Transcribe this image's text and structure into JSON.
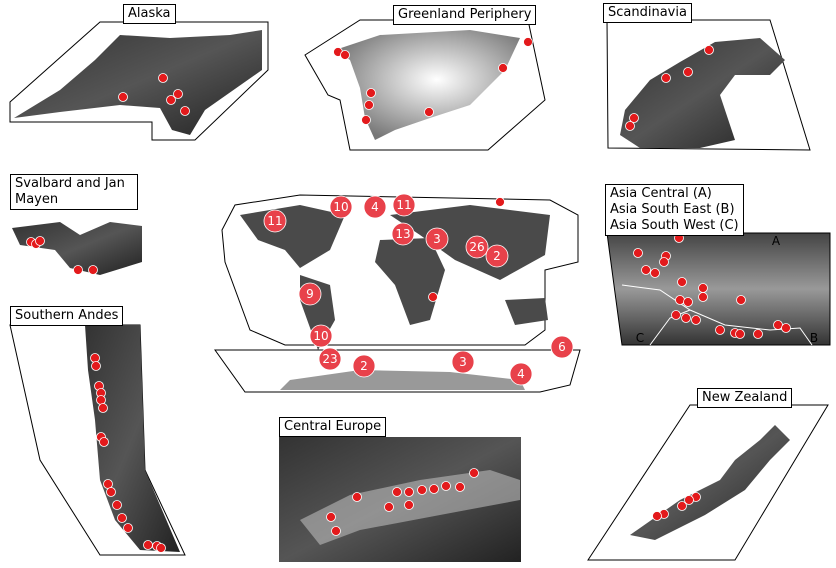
{
  "panels": [
    {
      "title": "Alaska"
    },
    {
      "title": "Greenland Periphery"
    },
    {
      "title": "Scandinavia"
    },
    {
      "title": "Svalbard and Jan Mayen"
    },
    {
      "title_lines": [
        "Asia Central (A)",
        "Asia South East (B)",
        "Asia South West (C)"
      ],
      "sublabels": [
        "A",
        "B",
        "C"
      ]
    },
    {
      "title": "Southern Andes"
    },
    {
      "title": "Central Europe"
    },
    {
      "title": "New Zealand"
    }
  ],
  "world_map": {
    "counts": [
      11,
      10,
      4,
      11,
      13,
      3,
      26,
      2,
      9,
      10,
      23,
      2,
      3,
      4,
      6
    ]
  }
}
